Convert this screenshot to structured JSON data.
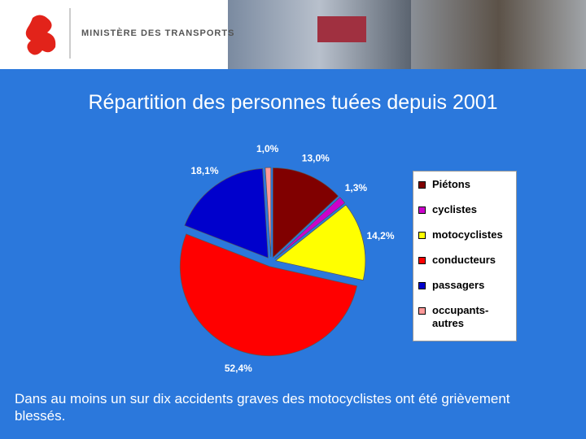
{
  "header": {
    "ministry": "MINISTÈRE DES TRANSPORTS"
  },
  "chart_data": {
    "type": "pie",
    "title": "Répartition des personnes tuées depuis 2001",
    "categories": [
      "Piétons",
      "cyclistes",
      "motocyclistes",
      "conducteurs",
      "passagers",
      "occupants-autres"
    ],
    "values": [
      13.0,
      1.3,
      14.2,
      52.4,
      18.1,
      1.0
    ],
    "value_labels": [
      "13,0%",
      "1,3%",
      "14,2%",
      "52,4%",
      "18,1%",
      "1,0%"
    ],
    "colors": [
      "#800000",
      "#cc00cc",
      "#ffff00",
      "#ff0000",
      "#0000cc",
      "#ff9999"
    ],
    "legend": "right"
  },
  "caption": "Dans au moins un sur dix accidents graves des motocyclistes ont été grièvement blessés."
}
